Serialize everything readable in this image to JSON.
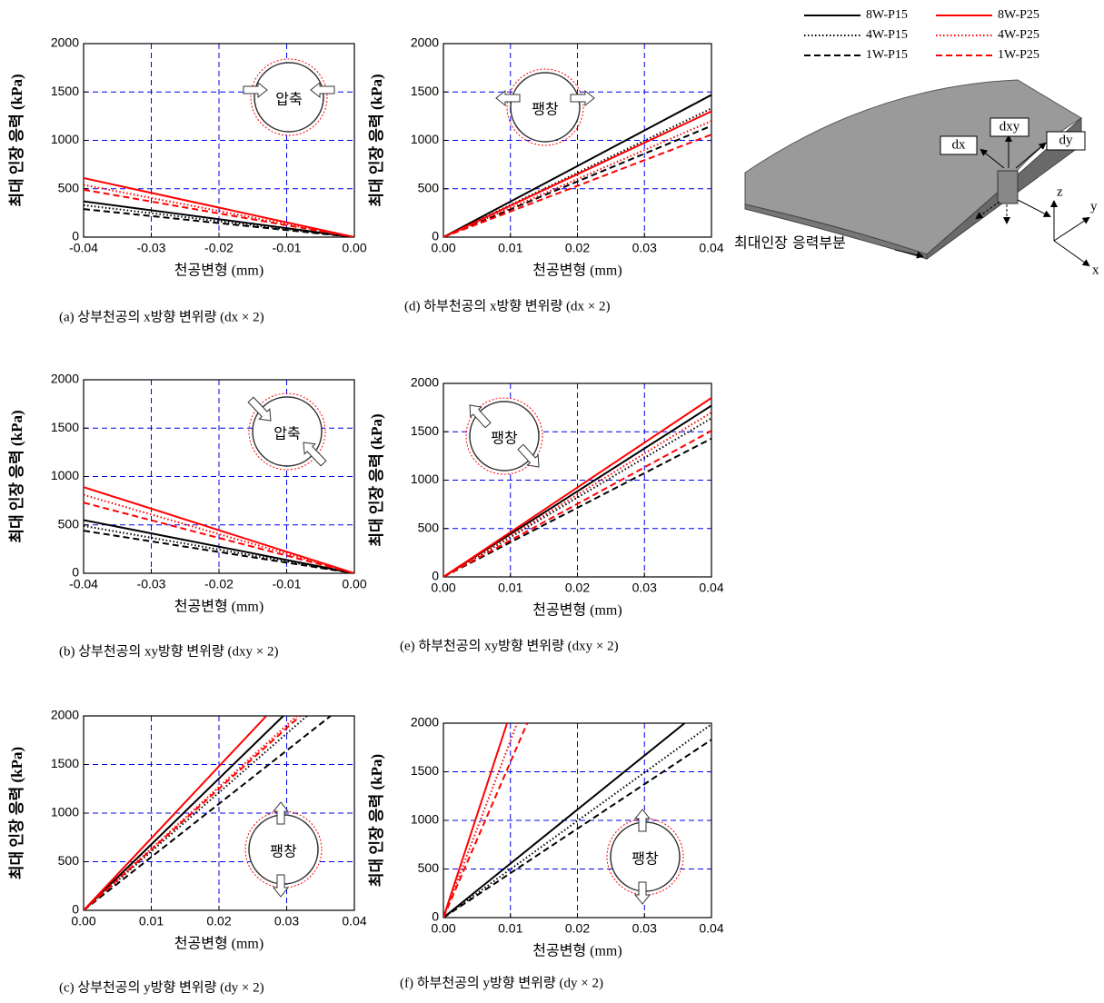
{
  "chart_data": [
    {
      "type": "line",
      "title": "(a) 상부천공의 x방향 변위량 (dx × 2)",
      "x_label": "천공변형 (mm)",
      "y_label": "최대 인장 응력 (kPa)",
      "annotation": "압축",
      "xlim": [
        -0.04,
        0
      ],
      "xticks": [
        -0.04,
        -0.03,
        -0.02,
        -0.01,
        {
          "value": 0,
          "label": "0.00"
        }
      ],
      "ylim": [
        0,
        2000
      ],
      "yticks": [
        0,
        500,
        1000,
        1500,
        2000
      ],
      "grid": true,
      "series": [
        {
          "name": "8W-P15",
          "color": "#000000",
          "line_style": "solid",
          "x": [
            -0.04,
            0
          ],
          "values": [
            370,
            0
          ]
        },
        {
          "name": "4W-P15",
          "color": "#000000",
          "line_style": "dotted",
          "x": [
            -0.04,
            0
          ],
          "values": [
            330,
            0
          ]
        },
        {
          "name": "1W-P15",
          "color": "#000000",
          "line_style": "dashed",
          "x": [
            -0.04,
            0
          ],
          "values": [
            290,
            0
          ]
        },
        {
          "name": "8W-P25",
          "color": "#ff0000",
          "line_style": "solid",
          "x": [
            -0.04,
            0
          ],
          "values": [
            610,
            0
          ]
        },
        {
          "name": "4W-P25",
          "color": "#ff0000",
          "line_style": "dotted",
          "x": [
            -0.04,
            0
          ],
          "values": [
            540,
            0
          ]
        },
        {
          "name": "1W-P25",
          "color": "#ff0000",
          "line_style": "dashed",
          "x": [
            -0.04,
            0
          ],
          "values": [
            490,
            0
          ]
        }
      ]
    },
    {
      "type": "line",
      "title": "(b)  상부천공의 xy방향 변위량 (dxy × 2)",
      "x_label": "천공변형 (mm)",
      "y_label": "최대 인장 응력 (kPa)",
      "annotation": "압축",
      "xlim": [
        -0.04,
        0
      ],
      "xticks": [
        -0.04,
        -0.03,
        -0.02,
        -0.01,
        {
          "value": 0,
          "label": "0.00"
        }
      ],
      "ylim": [
        0,
        2000
      ],
      "yticks": [
        0,
        500,
        1000,
        1500,
        2000
      ],
      "grid": true,
      "series": [
        {
          "color": "#000000",
          "line_style": "solid",
          "x": [
            -0.04,
            0
          ],
          "values": [
            550,
            0
          ]
        },
        {
          "color": "#000000",
          "line_style": "dotted",
          "x": [
            -0.04,
            0
          ],
          "values": [
            490,
            0
          ]
        },
        {
          "color": "#000000",
          "line_style": "dashed",
          "x": [
            -0.04,
            0
          ],
          "values": [
            440,
            0
          ]
        },
        {
          "color": "#ff0000",
          "line_style": "solid",
          "x": [
            -0.04,
            0
          ],
          "values": [
            890,
            0
          ]
        },
        {
          "color": "#ff0000",
          "line_style": "dotted",
          "x": [
            -0.04,
            0
          ],
          "values": [
            810,
            0
          ]
        },
        {
          "color": "#ff0000",
          "line_style": "dashed",
          "x": [
            -0.04,
            0
          ],
          "values": [
            730,
            0
          ]
        }
      ]
    },
    {
      "type": "line",
      "title": "(c) 상부천공의 y방향 변위량 (dy × 2)",
      "x_label": "천공변형 (mm)",
      "y_label": "최대 인장 응력 (kPa)",
      "annotation": "팽창",
      "xlim": [
        0,
        0.04
      ],
      "xticks": [
        {
          "value": 0,
          "label": "0.00"
        },
        0.01,
        0.02,
        0.03,
        0.04
      ],
      "ylim": [
        0,
        2000
      ],
      "yticks": [
        0,
        500,
        1000,
        1500,
        2000
      ],
      "grid": true,
      "series": [
        {
          "color": "#000000",
          "line_style": "solid",
          "x": [
            0,
            0.0295
          ],
          "values": [
            0,
            2000
          ]
        },
        {
          "color": "#000000",
          "line_style": "dotted",
          "x": [
            0,
            0.033
          ],
          "values": [
            0,
            2000
          ]
        },
        {
          "color": "#000000",
          "line_style": "dashed",
          "x": [
            0,
            0.0365
          ],
          "values": [
            0,
            2000
          ]
        },
        {
          "color": "#ff0000",
          "line_style": "solid",
          "x": [
            0,
            0.027
          ],
          "values": [
            0,
            2000
          ]
        },
        {
          "color": "#ff0000",
          "line_style": "dotted",
          "x": [
            0,
            0.0315
          ],
          "values": [
            0,
            2000
          ]
        },
        {
          "color": "#ff0000",
          "line_style": "dashed",
          "x": [
            0,
            0.032
          ],
          "values": [
            0,
            2000
          ]
        }
      ]
    },
    {
      "type": "line",
      "title": "(d) 하부천공의 x방향 변위량 (dx × 2)",
      "x_label": "천공변형 (mm)",
      "y_label": "최대 인장 응력 (kPa)",
      "annotation": "팽창",
      "xlim": [
        0,
        0.04
      ],
      "xticks": [
        {
          "value": 0,
          "label": "0.00"
        },
        0.01,
        0.02,
        0.03,
        0.04
      ],
      "ylim": [
        0,
        2000
      ],
      "yticks": [
        0,
        500,
        1000,
        1500,
        2000
      ],
      "grid": true,
      "series": [
        {
          "color": "#000000",
          "line_style": "solid",
          "x": [
            0,
            0.04
          ],
          "values": [
            0,
            1470
          ]
        },
        {
          "color": "#000000",
          "line_style": "dotted",
          "x": [
            0,
            0.04
          ],
          "values": [
            0,
            1330
          ]
        },
        {
          "color": "#000000",
          "line_style": "dashed",
          "x": [
            0,
            0.04
          ],
          "values": [
            0,
            1150
          ]
        },
        {
          "color": "#ff0000",
          "line_style": "solid",
          "x": [
            0,
            0.04
          ],
          "values": [
            0,
            1300
          ]
        },
        {
          "color": "#ff0000",
          "line_style": "dotted",
          "x": [
            0,
            0.04
          ],
          "values": [
            0,
            1200
          ]
        },
        {
          "color": "#ff0000",
          "line_style": "dashed",
          "x": [
            0,
            0.04
          ],
          "values": [
            0,
            1060
          ]
        }
      ]
    },
    {
      "type": "line",
      "title": "(e)  하부천공의 xy방향 변위량 (dxy × 2)",
      "x_label": "천공변형 (mm)",
      "y_label": "최대 인장 응력 (kPa)",
      "annotation": "팽창",
      "xlim": [
        0,
        0.04
      ],
      "xticks": [
        {
          "value": 0,
          "label": "0.00"
        },
        0.01,
        0.02,
        0.03,
        0.04
      ],
      "ylim": [
        0,
        2000
      ],
      "yticks": [
        0,
        500,
        1000,
        1500,
        2000
      ],
      "grid": true,
      "series": [
        {
          "color": "#000000",
          "line_style": "solid",
          "x": [
            0,
            0.04
          ],
          "values": [
            0,
            1770
          ]
        },
        {
          "color": "#000000",
          "line_style": "dotted",
          "x": [
            0,
            0.04
          ],
          "values": [
            0,
            1640
          ]
        },
        {
          "color": "#000000",
          "line_style": "dashed",
          "x": [
            0,
            0.04
          ],
          "values": [
            0,
            1430
          ]
        },
        {
          "color": "#ff0000",
          "line_style": "solid",
          "x": [
            0,
            0.04
          ],
          "values": [
            0,
            1850
          ]
        },
        {
          "color": "#ff0000",
          "line_style": "dotted",
          "x": [
            0,
            0.04
          ],
          "values": [
            0,
            1700
          ]
        },
        {
          "color": "#ff0000",
          "line_style": "dashed",
          "x": [
            0,
            0.04
          ],
          "values": [
            0,
            1510
          ]
        }
      ]
    },
    {
      "type": "line",
      "title": "(f) 하부천공의 y방향 변위량 (dy × 2)",
      "x_label": "천공변형 (mm)",
      "y_label": "최대 인장 응력 (kPa)",
      "annotation": "팽창",
      "xlim": [
        0,
        0.04
      ],
      "xticks": [
        {
          "value": 0,
          "label": "0.00"
        },
        0.01,
        0.02,
        0.03,
        0.04
      ],
      "ylim": [
        0,
        2000
      ],
      "yticks": [
        0,
        500,
        1000,
        1500,
        2000
      ],
      "grid": true,
      "series": [
        {
          "color": "#000000",
          "line_style": "solid",
          "x": [
            0,
            0.036
          ],
          "values": [
            0,
            2000
          ]
        },
        {
          "color": "#000000",
          "line_style": "dotted",
          "x": [
            0,
            0.04
          ],
          "values": [
            0,
            1990
          ]
        },
        {
          "color": "#000000",
          "line_style": "dashed",
          "x": [
            0,
            0.04
          ],
          "values": [
            0,
            1830
          ]
        },
        {
          "color": "#ff0000",
          "line_style": "solid",
          "x": [
            0,
            0.0095
          ],
          "values": [
            0,
            2000
          ]
        },
        {
          "color": "#ff0000",
          "line_style": "dotted",
          "x": [
            0,
            0.011
          ],
          "values": [
            0,
            2000
          ]
        },
        {
          "color": "#ff0000",
          "line_style": "dashed",
          "x": [
            0,
            0.0125
          ],
          "values": [
            0,
            2000
          ]
        }
      ]
    }
  ],
  "diagram": {
    "labels": {
      "dx": "dx",
      "dxy": "dxy",
      "dy": "dy",
      "z": "z",
      "y": "y",
      "x": "x",
      "max_stress": "최대인장 응력부분"
    }
  }
}
